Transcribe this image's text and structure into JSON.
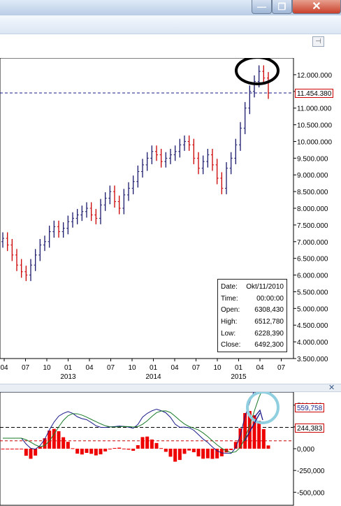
{
  "window": {
    "min_glyph": "—",
    "max_glyph": "❐",
    "close_glyph": "✕",
    "pin_glyph": "⊣"
  },
  "chart_data": [
    {
      "type": "candlestick",
      "title": "",
      "ylim": [
        3500000,
        12500000
      ],
      "y_ticks": [
        "12.000.000",
        "11.500.000",
        "11.000.000",
        "10.500.000",
        "10.000.000",
        "9.500.000",
        "9.000.000",
        "8.500.000",
        "8.000.000",
        "7.500.000",
        "7.000.000",
        "6.500.000",
        "6.000.000",
        "5.500.000",
        "5.000.000",
        "4.500.000",
        "4.000.000",
        "3.500.000"
      ],
      "x_ticks": [
        "04",
        "07",
        "10",
        "01",
        "04",
        "07",
        "10",
        "01",
        "04",
        "07",
        "10",
        "01",
        "04",
        "07"
      ],
      "x_years": [
        "2013",
        "2014",
        "2015"
      ],
      "current_price_label": "11.454.380",
      "current_price": 11454380,
      "closes_approx": [
        7100000,
        6900000,
        6600000,
        6300000,
        6100000,
        6000000,
        6300000,
        6600000,
        6900000,
        7000000,
        7300000,
        7450000,
        7300000,
        7400000,
        7600000,
        7700000,
        7800000,
        7900000,
        8000000,
        7800000,
        7700000,
        8100000,
        8300000,
        8500000,
        8200000,
        8000000,
        8400000,
        8600000,
        8800000,
        9100000,
        9300000,
        9500000,
        9700000,
        9600000,
        9400000,
        9500000,
        9600000,
        9700000,
        9900000,
        10000000,
        9900000,
        9500000,
        9200000,
        9400000,
        9600000,
        9300000,
        8900000,
        8600000,
        9200000,
        9500000,
        9900000,
        10400000,
        11000000,
        11500000,
        11800000,
        12100000,
        11900000,
        11454380
      ],
      "info_box": {
        "date_label": "Date:",
        "date_value": "Okt/11/2010",
        "time_label": "Time:",
        "time_value": "00:00:00",
        "open_label": "Open:",
        "open_value": "6308,430",
        "high_label": "High:",
        "high_value": "6512,780",
        "low_label": "Low:",
        "low_value": "6228,390",
        "close_label": "Close:",
        "close_value": "6492,300"
      },
      "annotation": "black ellipse around peak"
    },
    {
      "type": "line+histogram",
      "ylim": [
        -650000,
        650000
      ],
      "y_ticks": [
        "500,000",
        "250,000",
        "0,000",
        "-250,000",
        "-500,000"
      ],
      "value_label_1": "559,758",
      "value_label_2": "244,383",
      "reference_level": 244383,
      "annotation": "light-blue circle with arrow at end of oscillator"
    }
  ]
}
